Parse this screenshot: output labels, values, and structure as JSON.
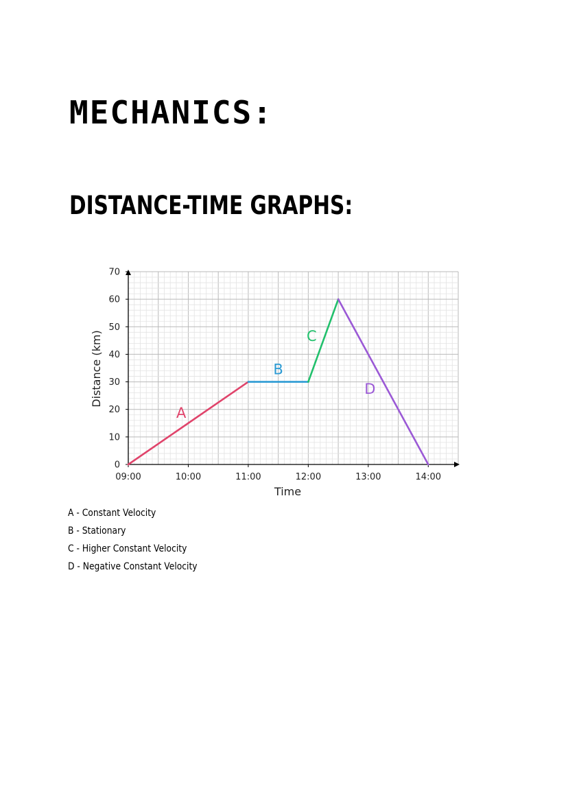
{
  "page": {
    "title": "MECHANICS:",
    "subtitle": "DISTANCE-TIME GRAPHS:"
  },
  "chart_data": {
    "type": "line",
    "xlabel": "Time",
    "ylabel": "Distance (km)",
    "x_ticks": [
      "09:00",
      "10:00",
      "11:00",
      "12:00",
      "13:00",
      "14:00"
    ],
    "y_ticks": [
      0,
      10,
      20,
      30,
      40,
      50,
      60,
      70
    ],
    "xlim": [
      "09:00",
      "14:30"
    ],
    "ylim": [
      0,
      70
    ],
    "grid": true,
    "segments": [
      {
        "label": "A",
        "color": "#e0446b",
        "points": [
          [
            "09:00",
            0
          ],
          [
            "11:00",
            30
          ]
        ]
      },
      {
        "label": "B",
        "color": "#2b9ad3",
        "points": [
          [
            "11:00",
            30
          ],
          [
            "12:00",
            30
          ]
        ]
      },
      {
        "label": "C",
        "color": "#21c06c",
        "points": [
          [
            "12:00",
            30
          ],
          [
            "12:30",
            60
          ]
        ]
      },
      {
        "label": "D",
        "color": "#9b59d6",
        "points": [
          [
            "12:30",
            60
          ],
          [
            "14:00",
            0
          ]
        ]
      }
    ]
  },
  "legend": [
    "A - Constant Velocity",
    "B - Stationary",
    "C - Higher Constant Velocity",
    "D - Negative Constant Velocity"
  ]
}
